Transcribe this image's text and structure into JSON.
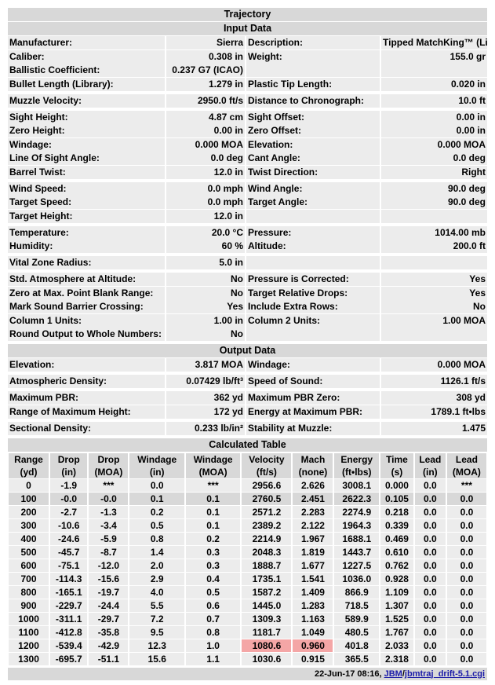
{
  "title": "Trajectory",
  "input_header": "Input Data",
  "input_groups": [
    [
      [
        "Manufacturer:",
        "Sierra",
        "Description:",
        "Tipped MatchKing™ (Litz)"
      ],
      [
        "Caliber:",
        "0.308 in",
        "Weight:",
        "155.0 gr"
      ],
      [
        "Ballistic Coefficient:",
        "0.237 G7 (ICAO)",
        "",
        ""
      ],
      [
        "Bullet Length (Library):",
        "1.279 in",
        "Plastic Tip Length:",
        "0.020 in"
      ]
    ],
    [
      [
        "Muzzle Velocity:",
        "2950.0 ft/s",
        "Distance to Chronograph:",
        "10.0 ft"
      ]
    ],
    [
      [
        "Sight Height:",
        "4.87 cm",
        "Sight Offset:",
        "0.00 in"
      ],
      [
        "Zero Height:",
        "0.00 in",
        "Zero Offset:",
        "0.00 in"
      ],
      [
        "Windage:",
        "0.000 MOA",
        "Elevation:",
        "0.000 MOA"
      ],
      [
        "Line Of Sight Angle:",
        "0.0 deg",
        "Cant Angle:",
        "0.0 deg"
      ],
      [
        "Barrel Twist:",
        "12.0 in",
        "Twist Direction:",
        "Right"
      ]
    ],
    [
      [
        "Wind Speed:",
        "0.0 mph",
        "Wind Angle:",
        "90.0 deg"
      ],
      [
        "Target Speed:",
        "0.0 mph",
        "Target Angle:",
        "90.0 deg"
      ],
      [
        "Target Height:",
        "12.0 in",
        "",
        ""
      ]
    ],
    [
      [
        "Temperature:",
        "20.0 °C",
        "Pressure:",
        "1014.00 mb"
      ],
      [
        "Humidity:",
        "60 %",
        "Altitude:",
        "200.0 ft"
      ]
    ],
    [
      [
        "Vital Zone Radius:",
        "5.0 in",
        "",
        ""
      ]
    ],
    [
      [
        "Std. Atmosphere at Altitude:",
        "No",
        "Pressure is Corrected:",
        "Yes"
      ],
      [
        "Zero at Max. Point Blank Range:",
        "No",
        "Target Relative Drops:",
        "Yes"
      ],
      [
        "Mark Sound Barrier Crossing:",
        "Yes",
        "Include Extra Rows:",
        "No"
      ],
      [
        "Column 1 Units:",
        "1.00 in",
        "Column 2 Units:",
        "1.00 MOA"
      ],
      [
        "Round Output to Whole Numbers:",
        "No",
        "",
        ""
      ]
    ]
  ],
  "output_header": "Output Data",
  "output_groups": [
    [
      [
        "Elevation:",
        "3.817 MOA",
        "Windage:",
        "0.000 MOA"
      ]
    ],
    [
      [
        "Atmospheric Density:",
        "0.07429 lb/ft³",
        "Speed of Sound:",
        "1126.1 ft/s"
      ]
    ],
    [
      [
        "Maximum PBR:",
        "362 yd",
        "Maximum PBR Zero:",
        "308 yd"
      ],
      [
        "Range of Maximum Height:",
        "172 yd",
        "Energy at Maximum PBR:",
        "1789.1 ft•lbs"
      ]
    ],
    [
      [
        "Sectional Density:",
        "0.233 lb/in²",
        "Stability at Muzzle:",
        "1.475"
      ]
    ]
  ],
  "table_header": "Calculated Table",
  "columns": [
    [
      "Range",
      "(yd)"
    ],
    [
      "Drop",
      "(in)"
    ],
    [
      "Drop",
      "(MOA)"
    ],
    [
      "Windage",
      "(in)"
    ],
    [
      "Windage",
      "(MOA)"
    ],
    [
      "Velocity",
      "(ft/s)"
    ],
    [
      "Mach",
      "(none)"
    ],
    [
      "Energy",
      "(ft•lbs)"
    ],
    [
      "Time",
      "(s)"
    ],
    [
      "Lead",
      "(in)"
    ],
    [
      "Lead",
      "(MOA)"
    ]
  ],
  "rows": [
    [
      "0",
      "-1.9",
      "***",
      "0.0",
      "***",
      "2956.6",
      "2.626",
      "3008.1",
      "0.000",
      "0.0",
      "***"
    ],
    [
      "100",
      "-0.0",
      "-0.0",
      "0.1",
      "0.1",
      "2760.5",
      "2.451",
      "2622.3",
      "0.105",
      "0.0",
      "0.0"
    ],
    [
      "200",
      "-2.7",
      "-1.3",
      "0.2",
      "0.1",
      "2571.2",
      "2.283",
      "2274.9",
      "0.218",
      "0.0",
      "0.0"
    ],
    [
      "300",
      "-10.6",
      "-3.4",
      "0.5",
      "0.1",
      "2389.2",
      "2.122",
      "1964.3",
      "0.339",
      "0.0",
      "0.0"
    ],
    [
      "400",
      "-24.6",
      "-5.9",
      "0.8",
      "0.2",
      "2214.9",
      "1.967",
      "1688.1",
      "0.469",
      "0.0",
      "0.0"
    ],
    [
      "500",
      "-45.7",
      "-8.7",
      "1.4",
      "0.3",
      "2048.3",
      "1.819",
      "1443.7",
      "0.610",
      "0.0",
      "0.0"
    ],
    [
      "600",
      "-75.1",
      "-12.0",
      "2.0",
      "0.3",
      "1888.7",
      "1.677",
      "1227.5",
      "0.762",
      "0.0",
      "0.0"
    ],
    [
      "700",
      "-114.3",
      "-15.6",
      "2.9",
      "0.4",
      "1735.1",
      "1.541",
      "1036.0",
      "0.928",
      "0.0",
      "0.0"
    ],
    [
      "800",
      "-165.1",
      "-19.7",
      "4.0",
      "0.5",
      "1587.2",
      "1.409",
      "866.9",
      "1.109",
      "0.0",
      "0.0"
    ],
    [
      "900",
      "-229.7",
      "-24.4",
      "5.5",
      "0.6",
      "1445.0",
      "1.283",
      "718.5",
      "1.307",
      "0.0",
      "0.0"
    ],
    [
      "1000",
      "-311.1",
      "-29.7",
      "7.2",
      "0.7",
      "1309.3",
      "1.163",
      "589.9",
      "1.525",
      "0.0",
      "0.0"
    ],
    [
      "1100",
      "-412.8",
      "-35.8",
      "9.5",
      "0.8",
      "1181.7",
      "1.049",
      "480.5",
      "1.767",
      "0.0",
      "0.0"
    ],
    [
      "1200",
      "-539.4",
      "-42.9",
      "12.3",
      "1.0",
      "1080.6",
      "0.960",
      "401.8",
      "2.033",
      "0.0",
      "0.0"
    ],
    [
      "1300",
      "-695.7",
      "-51.1",
      "15.6",
      "1.1",
      "1030.6",
      "0.915",
      "365.5",
      "2.318",
      "0.0",
      "0.0"
    ]
  ],
  "highlight_row": "100",
  "hot_cells": [
    [
      "1200",
      5
    ],
    [
      "1200",
      6
    ]
  ],
  "colors": {
    "header_bg": "#d8d8d8",
    "cell_bg": "#ececec",
    "hot": "#f4a6a6",
    "link": "#1a1aa8"
  },
  "footer": {
    "timestamp": "22-Jun-17 08:16,",
    "link1": "JBM",
    "slash": "/",
    "link2": "jbmtraj_drift-5.1.cgi"
  }
}
